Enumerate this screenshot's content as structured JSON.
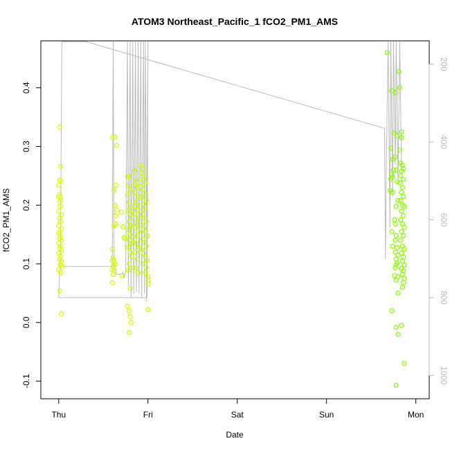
{
  "chart_data": {
    "type": "scatter",
    "title": "ATOM3 Northeast_Pacific_1 fCO2_PM1_AMS",
    "xlabel": "Date",
    "ylabel": "fCO2_PM1_AMS",
    "x_ticks": [
      "Thu",
      "Fri",
      "Sat",
      "Sun",
      "Mon"
    ],
    "xlim_days": [
      -0.2,
      4.15
    ],
    "ylim": [
      -0.13,
      0.48
    ],
    "y_ticks": [
      -0.1,
      0.0,
      0.1,
      0.2,
      0.3,
      0.4
    ],
    "y_tick_labels": [
      "-0.1",
      "0.0",
      "0.1",
      "0.2",
      "0.3",
      "0.4"
    ],
    "y2_ticks": [
      200,
      400,
      600,
      800,
      1000
    ],
    "y2_tick_labels": [
      "200",
      "400",
      "600",
      "800",
      "1000"
    ],
    "y2lim": [
      1060,
      140
    ],
    "y2_reversed": true,
    "grid": false,
    "colors": {
      "points_start": "#ddff00",
      "points_end": "#88ff00",
      "altitude_line": "#bbbbbb",
      "axes": "#000000"
    },
    "series": [
      {
        "kind": "points",
        "points": [
          [
            0.01,
            0.333
          ],
          [
            0.02,
            0.241
          ],
          [
            0.01,
            0.243
          ],
          [
            0.02,
            0.266
          ],
          [
            0.0,
            0.234
          ],
          [
            0.01,
            0.218
          ],
          [
            0.0,
            0.214
          ],
          [
            0.02,
            0.211
          ],
          [
            0.01,
            0.205
          ],
          [
            0.02,
            0.198
          ],
          [
            0.0,
            0.19
          ],
          [
            0.03,
            0.184
          ],
          [
            0.01,
            0.178
          ],
          [
            0.02,
            0.172
          ],
          [
            0.0,
            0.165
          ],
          [
            0.03,
            0.16
          ],
          [
            0.01,
            0.155
          ],
          [
            0.0,
            0.152
          ],
          [
            0.02,
            0.148
          ],
          [
            0.01,
            0.143
          ],
          [
            0.03,
            0.14
          ],
          [
            0.0,
            0.135
          ],
          [
            0.02,
            0.13
          ],
          [
            0.01,
            0.127
          ],
          [
            0.03,
            0.122
          ],
          [
            0.0,
            0.118
          ],
          [
            0.02,
            0.113
          ],
          [
            0.01,
            0.108
          ],
          [
            0.03,
            0.104
          ],
          [
            0.02,
            0.099
          ],
          [
            0.04,
            0.095
          ],
          [
            0.0,
            0.09
          ],
          [
            0.02,
            0.085
          ],
          [
            0.01,
            0.054
          ],
          [
            0.03,
            0.015
          ],
          [
            0.6,
            0.315
          ],
          [
            0.63,
            0.316
          ],
          [
            0.65,
            0.302
          ],
          [
            0.64,
            0.234
          ],
          [
            0.62,
            0.225
          ],
          [
            0.63,
            0.2
          ],
          [
            0.65,
            0.192
          ],
          [
            0.64,
            0.182
          ],
          [
            0.62,
            0.165
          ],
          [
            0.64,
            0.168
          ],
          [
            0.6,
            0.125
          ],
          [
            0.61,
            0.11
          ],
          [
            0.6,
            0.105
          ],
          [
            0.62,
            0.103
          ],
          [
            0.63,
            0.1
          ],
          [
            0.61,
            0.096
          ],
          [
            0.6,
            0.09
          ],
          [
            0.62,
            0.088
          ],
          [
            0.61,
            0.082
          ],
          [
            0.6,
            0.068
          ],
          [
            0.7,
            0.188
          ],
          [
            0.72,
            0.163
          ],
          [
            0.73,
            0.145
          ],
          [
            0.74,
            0.143
          ],
          [
            0.71,
            0.08
          ],
          [
            0.77,
            0.249
          ],
          [
            0.79,
            0.249
          ],
          [
            0.78,
            0.233
          ],
          [
            0.8,
            0.226
          ],
          [
            0.77,
            0.218
          ],
          [
            0.79,
            0.205
          ],
          [
            0.81,
            0.195
          ],
          [
            0.78,
            0.19
          ],
          [
            0.8,
            0.185
          ],
          [
            0.82,
            0.18
          ],
          [
            0.79,
            0.172
          ],
          [
            0.81,
            0.165
          ],
          [
            0.78,
            0.158
          ],
          [
            0.8,
            0.15
          ],
          [
            0.77,
            0.146
          ],
          [
            0.79,
            0.14
          ],
          [
            0.81,
            0.135
          ],
          [
            0.78,
            0.128
          ],
          [
            0.8,
            0.12
          ],
          [
            0.82,
            0.113
          ],
          [
            0.79,
            0.1
          ],
          [
            0.81,
            0.093
          ],
          [
            0.78,
            0.089
          ],
          [
            0.8,
            0.058
          ],
          [
            0.77,
            0.028
          ],
          [
            0.79,
            0.02
          ],
          [
            0.8,
            0.01
          ],
          [
            0.81,
            0.0
          ],
          [
            0.79,
            -0.017
          ],
          [
            0.85,
            0.258
          ],
          [
            0.87,
            0.243
          ],
          [
            0.86,
            0.235
          ],
          [
            0.88,
            0.23
          ],
          [
            0.85,
            0.222
          ],
          [
            0.89,
            0.215
          ],
          [
            0.87,
            0.205
          ],
          [
            0.86,
            0.198
          ],
          [
            0.88,
            0.192
          ],
          [
            0.85,
            0.185
          ],
          [
            0.9,
            0.178
          ],
          [
            0.87,
            0.17
          ],
          [
            0.86,
            0.162
          ],
          [
            0.89,
            0.155
          ],
          [
            0.88,
            0.148
          ],
          [
            0.85,
            0.142
          ],
          [
            0.87,
            0.135
          ],
          [
            0.9,
            0.128
          ],
          [
            0.86,
            0.12
          ],
          [
            0.88,
            0.108
          ],
          [
            0.87,
            0.093
          ],
          [
            0.89,
            0.085
          ],
          [
            0.92,
            0.268
          ],
          [
            0.94,
            0.262
          ],
          [
            0.93,
            0.255
          ],
          [
            0.96,
            0.25
          ],
          [
            0.95,
            0.244
          ],
          [
            0.97,
            0.238
          ],
          [
            0.92,
            0.232
          ],
          [
            0.94,
            0.226
          ],
          [
            0.96,
            0.22
          ],
          [
            0.93,
            0.214
          ],
          [
            0.98,
            0.208
          ],
          [
            0.95,
            0.202
          ],
          [
            0.97,
            0.196
          ],
          [
            0.92,
            0.19
          ],
          [
            0.94,
            0.184
          ],
          [
            0.96,
            0.178
          ],
          [
            0.98,
            0.172
          ],
          [
            0.93,
            0.166
          ],
          [
            0.95,
            0.16
          ],
          [
            0.97,
            0.154
          ],
          [
            0.99,
            0.148
          ],
          [
            0.94,
            0.142
          ],
          [
            0.96,
            0.136
          ],
          [
            0.98,
            0.13
          ],
          [
            0.93,
            0.124
          ],
          [
            0.95,
            0.118
          ],
          [
            0.97,
            0.112
          ],
          [
            0.99,
            0.106
          ],
          [
            0.96,
            0.1
          ],
          [
            0.98,
            0.094
          ],
          [
            0.97,
            0.085
          ],
          [
            1.0,
            0.078
          ],
          [
            1.0,
            0.072
          ],
          [
            1.0,
            0.065
          ],
          [
            1.0,
            0.022
          ],
          [
            3.68,
            0.46
          ],
          [
            3.73,
            0.395
          ],
          [
            3.77,
            0.392
          ],
          [
            3.76,
            0.323
          ],
          [
            3.79,
            0.318
          ],
          [
            3.72,
            0.297
          ],
          [
            3.74,
            0.278
          ],
          [
            3.77,
            0.282
          ],
          [
            3.75,
            0.26
          ],
          [
            3.78,
            0.26
          ],
          [
            3.73,
            0.252
          ],
          [
            3.74,
            0.248
          ],
          [
            3.72,
            0.245
          ],
          [
            3.79,
            0.24
          ],
          [
            3.71,
            0.225
          ],
          [
            3.74,
            0.222
          ],
          [
            3.8,
            0.208
          ],
          [
            3.78,
            0.198
          ],
          [
            3.76,
            0.175
          ],
          [
            3.77,
            0.168
          ],
          [
            3.73,
            0.155
          ],
          [
            3.78,
            0.148
          ],
          [
            3.77,
            0.14
          ],
          [
            3.74,
            0.13
          ],
          [
            3.79,
            0.128
          ],
          [
            3.77,
            0.12
          ],
          [
            3.8,
            0.115
          ],
          [
            3.78,
            0.108
          ],
          [
            3.79,
            0.102
          ],
          [
            3.78,
            0.098
          ],
          [
            3.77,
            0.093
          ],
          [
            3.76,
            0.08
          ],
          [
            3.8,
            0.078
          ],
          [
            3.78,
            0.072
          ],
          [
            3.8,
            0.05
          ],
          [
            3.73,
            0.02
          ],
          [
            3.78,
            -0.008
          ],
          [
            3.8,
            -0.02
          ],
          [
            3.78,
            -0.107
          ],
          [
            3.81,
            0.428
          ],
          [
            3.82,
            0.4
          ],
          [
            3.84,
            0.325
          ],
          [
            3.84,
            0.315
          ],
          [
            3.82,
            0.294
          ],
          [
            3.83,
            0.272
          ],
          [
            3.85,
            0.268
          ],
          [
            3.86,
            0.262
          ],
          [
            3.84,
            0.258
          ],
          [
            3.83,
            0.25
          ],
          [
            3.86,
            0.244
          ],
          [
            3.82,
            0.238
          ],
          [
            3.85,
            0.23
          ],
          [
            3.84,
            0.222
          ],
          [
            3.86,
            0.215
          ],
          [
            3.83,
            0.208
          ],
          [
            3.85,
            0.2
          ],
          [
            3.87,
            0.198
          ],
          [
            3.84,
            0.19
          ],
          [
            3.86,
            0.182
          ],
          [
            3.83,
            0.175
          ],
          [
            3.85,
            0.168
          ],
          [
            3.87,
            0.162
          ],
          [
            3.84,
            0.155
          ],
          [
            3.86,
            0.148
          ],
          [
            3.83,
            0.14
          ],
          [
            3.85,
            0.13
          ],
          [
            3.87,
            0.125
          ],
          [
            3.84,
            0.118
          ],
          [
            3.86,
            0.112
          ],
          [
            3.85,
            0.105
          ],
          [
            3.87,
            0.098
          ],
          [
            3.84,
            0.092
          ],
          [
            3.86,
            0.088
          ],
          [
            3.85,
            0.082
          ],
          [
            3.87,
            0.075
          ],
          [
            3.86,
            0.068
          ],
          [
            3.85,
            0.06
          ],
          [
            3.84,
            -0.005
          ],
          [
            3.87,
            -0.07
          ]
        ]
      },
      {
        "kind": "line",
        "axis": "y2",
        "points": [
          [
            0.0,
            800
          ],
          [
            0.02,
            680
          ],
          [
            0.035,
            140
          ],
          [
            0.3,
            140
          ],
          [
            3.65,
            365
          ],
          [
            3.66,
            700
          ],
          [
            3.67,
            440
          ],
          [
            3.69,
            140
          ],
          [
            3.71,
            620
          ],
          [
            3.72,
            140
          ],
          [
            3.74,
            540
          ],
          [
            3.75,
            140
          ],
          [
            3.77,
            460
          ],
          [
            3.78,
            140
          ],
          [
            3.8,
            500
          ],
          [
            3.82,
            140
          ],
          [
            3.84,
            470
          ]
        ]
      },
      {
        "kind": "line",
        "axis": "y2",
        "points": [
          [
            0.0,
            800
          ],
          [
            0.98,
            800
          ],
          [
            0.98,
            810
          ],
          [
            1.0,
            140
          ],
          [
            0.99,
            800
          ],
          [
            0.97,
            140
          ],
          [
            0.96,
            790
          ],
          [
            0.95,
            140
          ],
          [
            0.93,
            800
          ],
          [
            0.92,
            140
          ],
          [
            0.9,
            790
          ],
          [
            0.89,
            140
          ],
          [
            0.87,
            785
          ],
          [
            0.86,
            140
          ],
          [
            0.84,
            790
          ],
          [
            0.83,
            140
          ],
          [
            0.81,
            800
          ],
          [
            0.8,
            140
          ],
          [
            0.78,
            770
          ],
          [
            0.77,
            140
          ],
          [
            0.75,
            735
          ],
          [
            0.73,
            750
          ],
          [
            0.72,
            735
          ],
          [
            0.7,
            740
          ],
          [
            0.65,
            740
          ],
          [
            0.62,
            720
          ],
          [
            0.61,
            140
          ],
          [
            0.6,
            720
          ],
          [
            0.0,
            720
          ]
        ]
      }
    ]
  }
}
